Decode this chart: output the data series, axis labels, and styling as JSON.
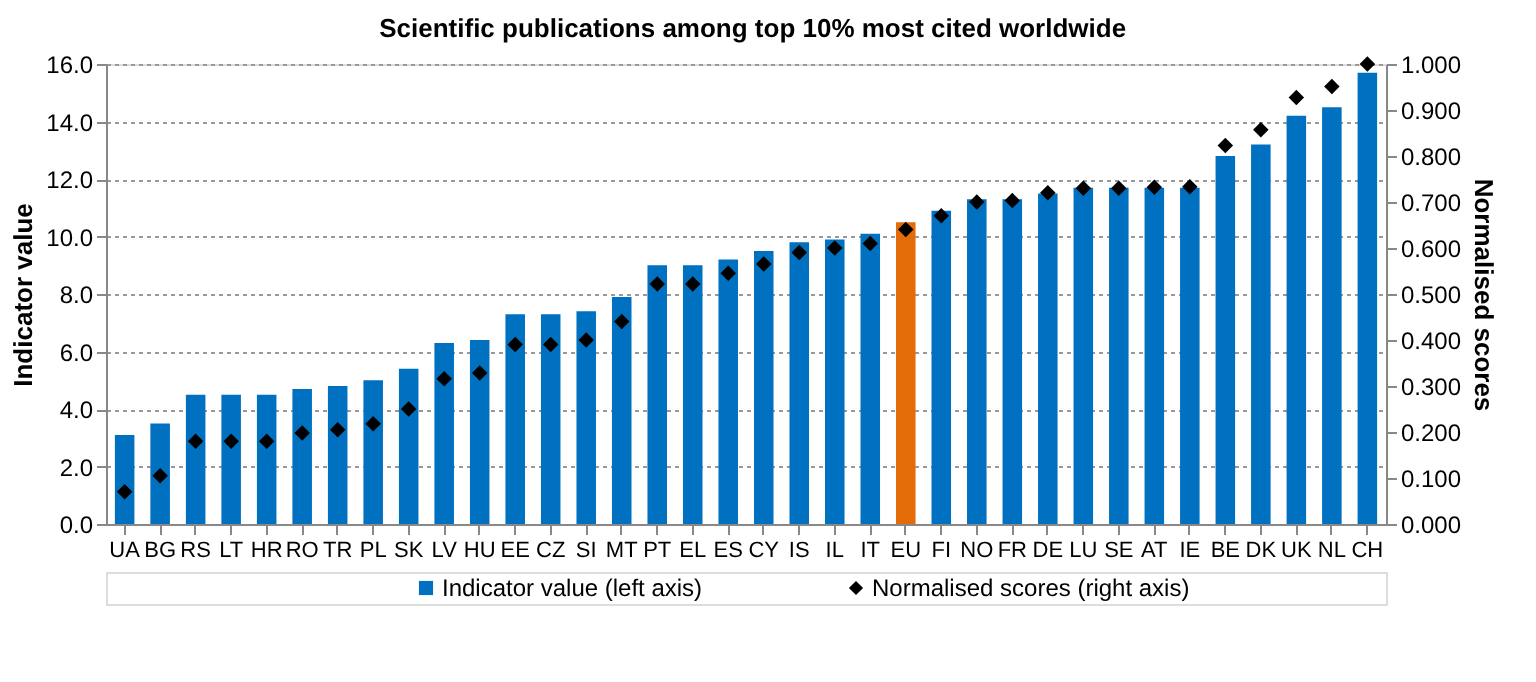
{
  "chart_data": {
    "type": "bar",
    "title": "Scientific publications among top 10% most cited worldwide",
    "ylabel": "Indicator value",
    "y2label": "Normalised scores",
    "categories": [
      "UA",
      "BG",
      "RS",
      "LT",
      "HR",
      "RO",
      "TR",
      "PL",
      "SK",
      "LV",
      "HU",
      "EE",
      "CZ",
      "SI",
      "MT",
      "PT",
      "EL",
      "ES",
      "CY",
      "IS",
      "IL",
      "IT",
      "EU",
      "FI",
      "NO",
      "FR",
      "DE",
      "LU",
      "SE",
      "AT",
      "IE",
      "BE",
      "DK",
      "UK",
      "NL",
      "CH"
    ],
    "series": [
      {
        "name": "Indicator value (left axis)",
        "color": "#0070c0",
        "colors": [
          "#0070c0",
          "#0070c0",
          "#0070c0",
          "#0070c0",
          "#0070c0",
          "#0070c0",
          "#0070c0",
          "#0070c0",
          "#0070c0",
          "#0070c0",
          "#0070c0",
          "#0070c0",
          "#0070c0",
          "#0070c0",
          "#0070c0",
          "#0070c0",
          "#0070c0",
          "#0070c0",
          "#0070c0",
          "#0070c0",
          "#0070c0",
          "#0070c0",
          "#e36c09",
          "#0070c0",
          "#0070c0",
          "#0070c0",
          "#0070c0",
          "#0070c0",
          "#0070c0",
          "#0070c0",
          "#0070c0",
          "#0070c0",
          "#0070c0",
          "#0070c0",
          "#0070c0",
          "#0070c0"
        ],
        "values": [
          3.1,
          3.5,
          4.5,
          4.5,
          4.5,
          4.7,
          4.8,
          5.0,
          5.4,
          6.3,
          6.4,
          7.3,
          7.3,
          7.4,
          7.9,
          9.0,
          9.0,
          9.2,
          9.5,
          9.8,
          9.9,
          10.1,
          10.5,
          10.9,
          11.3,
          11.3,
          11.5,
          11.7,
          11.7,
          11.7,
          11.7,
          12.8,
          13.2,
          14.2,
          14.5,
          15.7
        ]
      },
      {
        "name": "Normalised scores (right axis)",
        "type": "scatter",
        "axis": "y2",
        "marker": "diamond",
        "color": "#000000",
        "values": [
          0.07,
          0.105,
          0.18,
          0.18,
          0.18,
          0.198,
          0.205,
          0.218,
          0.25,
          0.316,
          0.328,
          0.39,
          0.39,
          0.4,
          0.44,
          0.522,
          0.522,
          0.545,
          0.565,
          0.59,
          0.6,
          0.61,
          0.64,
          0.67,
          0.7,
          0.703,
          0.72,
          0.73,
          0.73,
          0.732,
          0.733,
          0.823,
          0.857,
          0.927,
          0.951,
          1.0
        ]
      }
    ],
    "ylim": [
      0,
      16
    ],
    "yticks": [
      {
        "value": 0,
        "label": "0.0"
      },
      {
        "value": 2,
        "label": "2.0"
      },
      {
        "value": 4,
        "label": "4.0"
      },
      {
        "value": 6,
        "label": "6.0"
      },
      {
        "value": 8,
        "label": "8.0"
      },
      {
        "value": 10,
        "label": "10.0"
      },
      {
        "value": 12,
        "label": "12.0"
      },
      {
        "value": 14,
        "label": "14.0"
      },
      {
        "value": 16,
        "label": "16.0"
      }
    ],
    "y2lim": [
      0,
      1
    ],
    "y2ticks": [
      {
        "value": 0,
        "label": "0.000"
      },
      {
        "value": 0.1,
        "label": "0.100"
      },
      {
        "value": 0.2,
        "label": "0.200"
      },
      {
        "value": 0.3,
        "label": "0.300"
      },
      {
        "value": 0.4,
        "label": "0.400"
      },
      {
        "value": 0.5,
        "label": "0.500"
      },
      {
        "value": 0.6,
        "label": "0.600"
      },
      {
        "value": 0.7,
        "label": "0.700"
      },
      {
        "value": 0.8,
        "label": "0.800"
      },
      {
        "value": 0.9,
        "label": "0.900"
      },
      {
        "value": 1.0,
        "label": "1.000"
      }
    ],
    "grid": "y",
    "legend": "bottom"
  }
}
